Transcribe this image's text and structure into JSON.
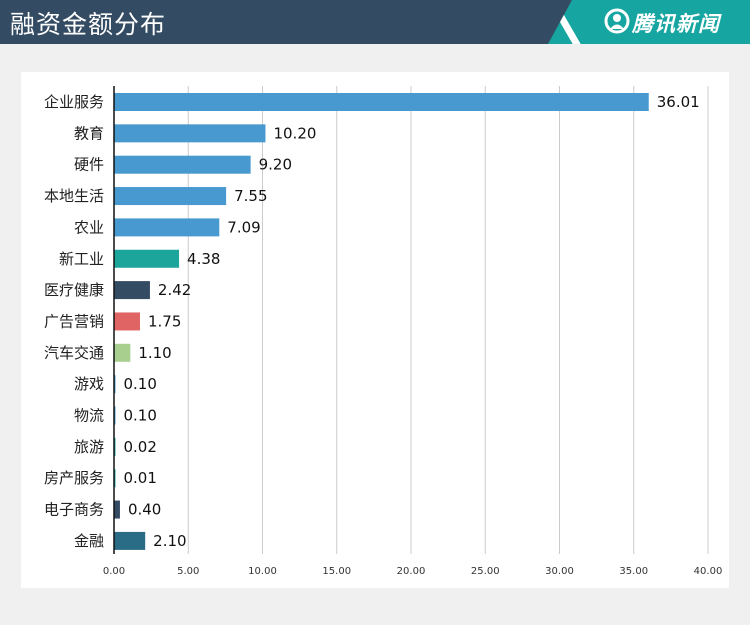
{
  "header": {
    "title": "融资金额分布",
    "brand": "腾讯新闻",
    "brand_icon": "tencent-news-logo-icon"
  },
  "colors": {
    "header_bg": "#344c63",
    "brand_bg": "#16a5a0"
  },
  "chart_data": {
    "type": "bar",
    "orientation": "horizontal",
    "title": "融资金额分布",
    "categories": [
      "企业服务",
      "教育",
      "硬件",
      "本地生活",
      "农业",
      "新工业",
      "医疗健康",
      "广告营销",
      "汽车交通",
      "游戏",
      "物流",
      "旅游",
      "房产服务",
      "电子商务",
      "金融"
    ],
    "values": [
      36.01,
      10.2,
      9.2,
      7.55,
      7.09,
      4.38,
      2.42,
      1.75,
      1.1,
      0.1,
      0.1,
      0.02,
      0.01,
      0.4,
      2.1
    ],
    "value_labels": [
      "36.01",
      "10.20",
      "9.20",
      "7.55",
      "7.09",
      "4.38",
      "2.42",
      "1.75",
      "1.10",
      "0.10",
      "0.10",
      "0.02",
      "0.01",
      "0.40",
      "2.10"
    ],
    "colors": [
      "#4799cf",
      "#4799cf",
      "#4799cf",
      "#4799cf",
      "#4799cf",
      "#1ba59b",
      "#344c63",
      "#e06464",
      "#a9cf8f",
      "#4799cf",
      "#4799cf",
      "#1ba59b",
      "#1ba59b",
      "#344c63",
      "#2a6b86"
    ],
    "xlim": [
      0,
      40
    ],
    "xticks": [
      "0.00",
      "5.00",
      "10.00",
      "15.00",
      "20.00",
      "25.00",
      "30.00",
      "35.00",
      "40.00"
    ],
    "xlabel": "",
    "ylabel": "",
    "grid": "vertical",
    "legend": "none"
  }
}
